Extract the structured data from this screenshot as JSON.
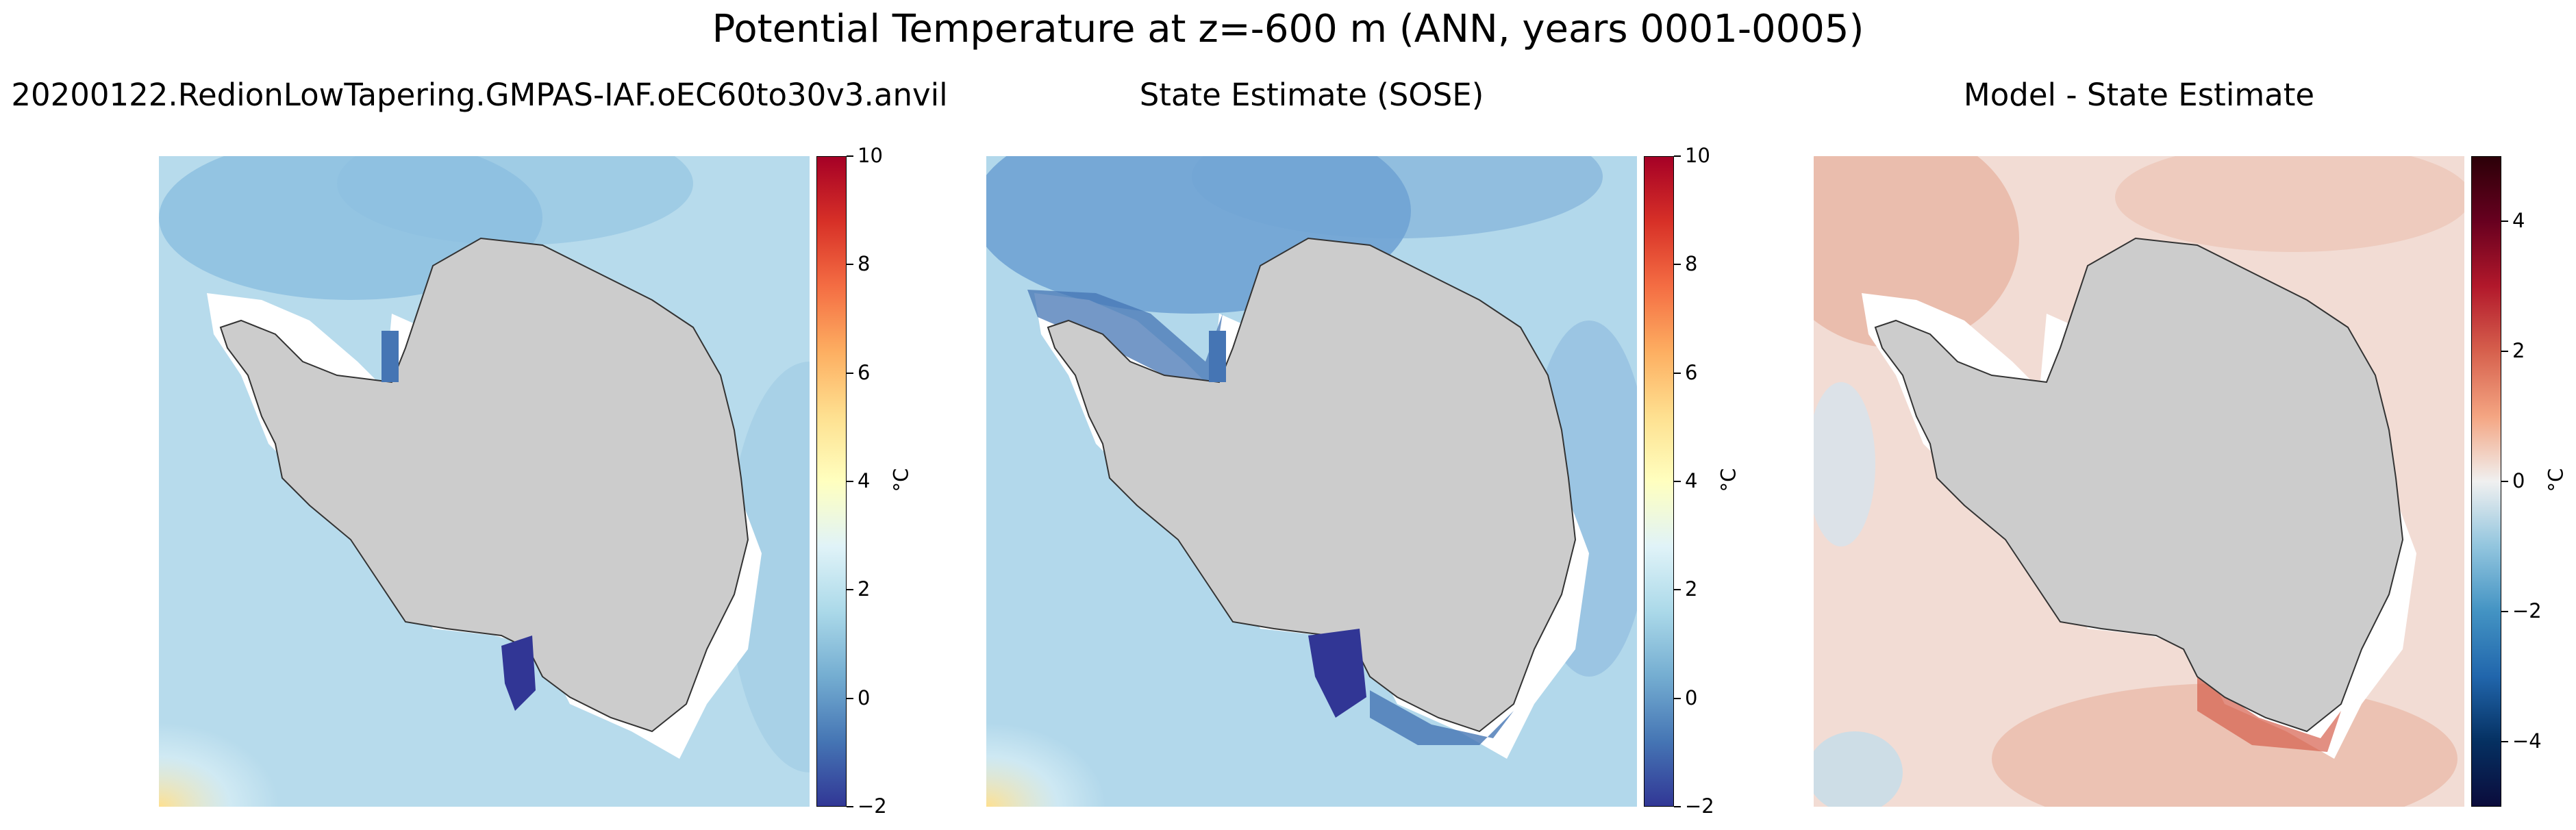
{
  "figure": {
    "suptitle": "Potential Temperature at z=-600 m (ANN, years 0001-0005)"
  },
  "chart_data": [
    {
      "type": "heatmap",
      "title": "20200122.RedionLowTapering.GMPAS-IAF.oEC60to30v3.anvil",
      "colorbar": {
        "label": "°C",
        "range": [
          -2,
          10
        ],
        "ticks": [
          "−2",
          "0",
          "2",
          "4",
          "6",
          "8",
          "10"
        ],
        "colormap": "RdYlBu_r"
      },
      "colors": {
        "stops": [
          "#313695",
          "#4575b4",
          "#74add1",
          "#abd9e9",
          "#e0f3f8",
          "#ffffbf",
          "#fee090",
          "#fdae61",
          "#f46d43",
          "#d73027",
          "#a50026"
        ],
        "land": "#cccccc",
        "no_data": "#ffffff",
        "ocean_base": "#b7dbec",
        "ocean_cool": "#8dbfe0"
      }
    },
    {
      "type": "heatmap",
      "title": "State Estimate (SOSE)",
      "colorbar": {
        "label": "°C",
        "range": [
          -2,
          10
        ],
        "ticks": [
          "−2",
          "0",
          "2",
          "4",
          "6",
          "8",
          "10"
        ],
        "colormap": "RdYlBu_r"
      },
      "colors": {
        "stops": [
          "#313695",
          "#4575b4",
          "#74add1",
          "#abd9e9",
          "#e0f3f8",
          "#ffffbf",
          "#fee090",
          "#fdae61",
          "#f46d43",
          "#d73027",
          "#a50026"
        ],
        "land": "#cccccc",
        "no_data": "#ffffff",
        "ocean_base": "#b2d8eb",
        "ocean_cool": "#6fa3d4"
      }
    },
    {
      "type": "heatmap",
      "title": "Model - State Estimate",
      "colorbar": {
        "label": "°C",
        "range": [
          -5,
          5
        ],
        "ticks": [
          "−4",
          "−2",
          "0",
          "2",
          "4"
        ],
        "colormap": "RdBu_r"
      },
      "colors": {
        "stops": [
          "#0b0b3b",
          "#053061",
          "#2166ac",
          "#4393c3",
          "#92c5de",
          "#f0f0f0",
          "#f4a582",
          "#d6604d",
          "#b2182b",
          "#67001f",
          "#2b0008"
        ],
        "land": "#cccccc",
        "no_data": "#ffffff",
        "ocean_base": "#f2dcd4",
        "ocean_warm": "#e9b9a8"
      }
    }
  ]
}
